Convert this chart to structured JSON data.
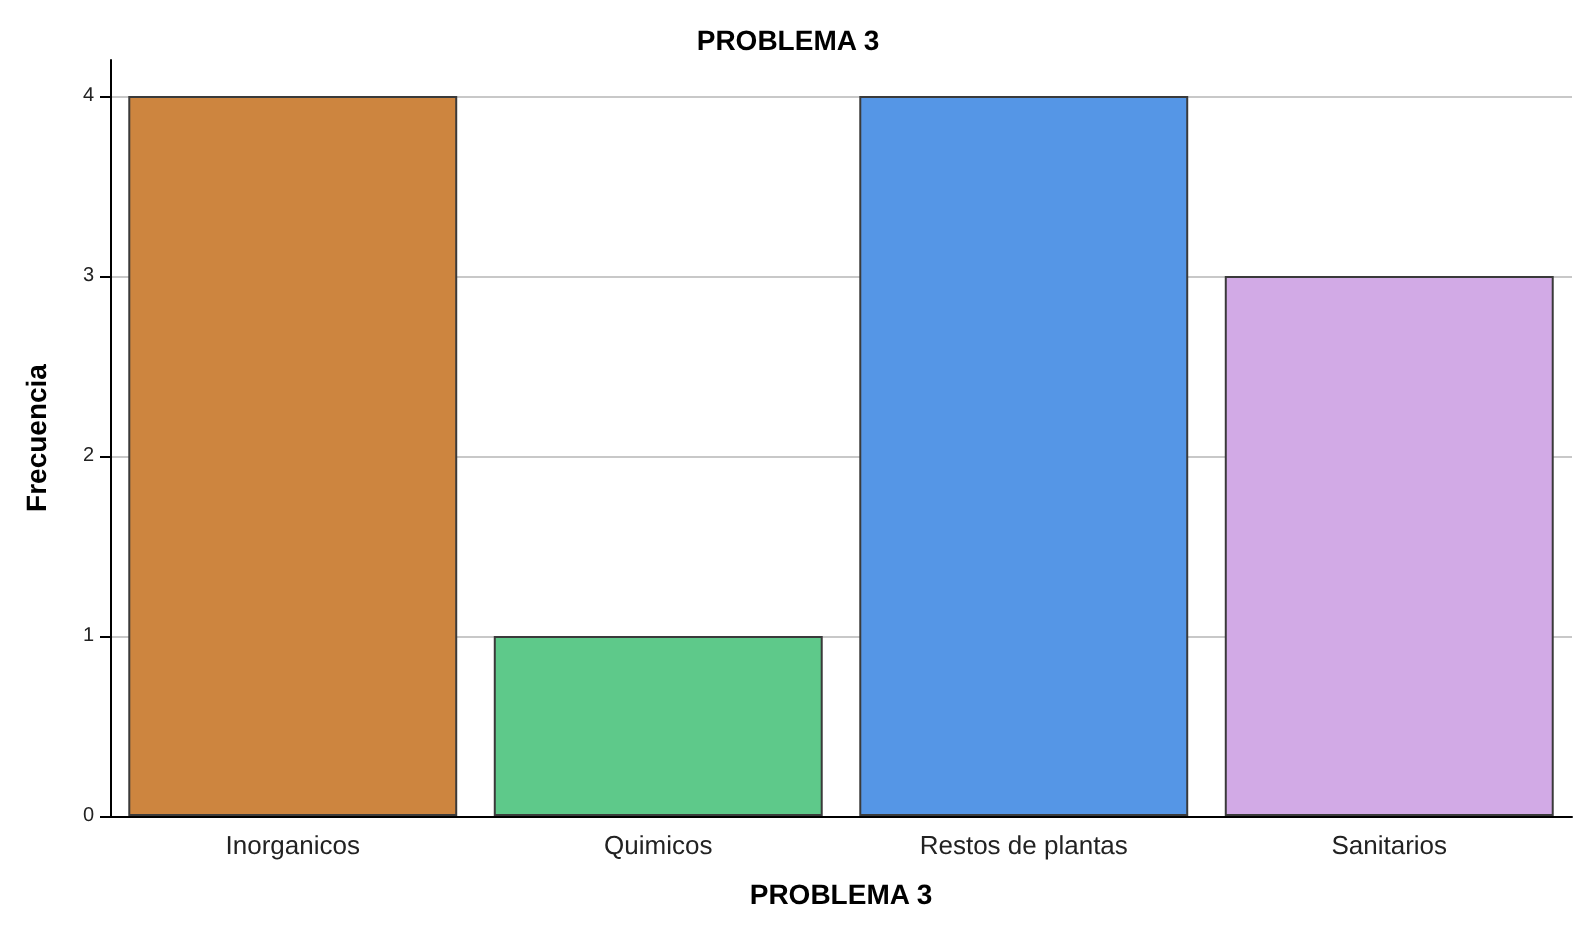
{
  "chart_data": {
    "type": "bar",
    "title": "PROBLEMA 3",
    "xlabel": "PROBLEMA 3",
    "ylabel": "Frecuencia",
    "categories": [
      "Inorganicos",
      "Quimicos",
      "Restos de plantas",
      "Sanitarios"
    ],
    "values": [
      4,
      1,
      4,
      3
    ],
    "colors": [
      "#cd853f",
      "#5ec98a",
      "#5596e6",
      "#d2aae6"
    ],
    "ylim": [
      0,
      4.2
    ],
    "yticks": [
      0,
      1,
      2,
      3,
      4
    ],
    "grid": "y"
  }
}
